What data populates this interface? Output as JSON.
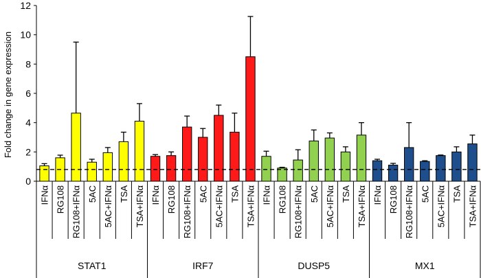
{
  "chart_data": {
    "type": "bar",
    "title": "",
    "ylabel": "Fold change in gene expression",
    "xlabel": "",
    "ylim": [
      0,
      12
    ],
    "yticks": [
      0,
      2,
      4,
      6,
      8,
      10,
      12
    ],
    "reference_line": 0.8,
    "treatments": [
      "IFNα",
      "RG108",
      "RG108+IFNα",
      "5AC",
      "5AC+IFNα",
      "TSA",
      "TSA+IFNα"
    ],
    "groups": [
      {
        "name": "STAT1",
        "color": "#ffff00",
        "values": [
          1.05,
          1.6,
          4.65,
          1.3,
          1.95,
          2.7,
          4.1
        ],
        "errors": [
          0.15,
          0.18,
          4.85,
          0.2,
          0.35,
          0.65,
          1.2
        ]
      },
      {
        "name": "IRF7",
        "color": "#ff1a1a",
        "values": [
          1.7,
          1.75,
          3.7,
          3.0,
          4.5,
          3.35,
          8.5
        ],
        "errors": [
          0.12,
          0.25,
          0.75,
          0.6,
          0.7,
          1.3,
          2.75
        ]
      },
      {
        "name": "DUSP5",
        "color": "#92d050",
        "values": [
          1.7,
          0.9,
          1.45,
          2.75,
          2.95,
          2.0,
          3.15
        ],
        "errors": [
          0.35,
          0.05,
          0.7,
          0.75,
          0.35,
          0.35,
          0.85
        ]
      },
      {
        "name": "MX1",
        "color": "#1f4e8c",
        "values": [
          1.4,
          1.1,
          2.3,
          1.35,
          1.75,
          2.0,
          2.55
        ],
        "errors": [
          0.1,
          0.12,
          1.7,
          0.05,
          0.04,
          0.35,
          0.6
        ]
      }
    ]
  }
}
